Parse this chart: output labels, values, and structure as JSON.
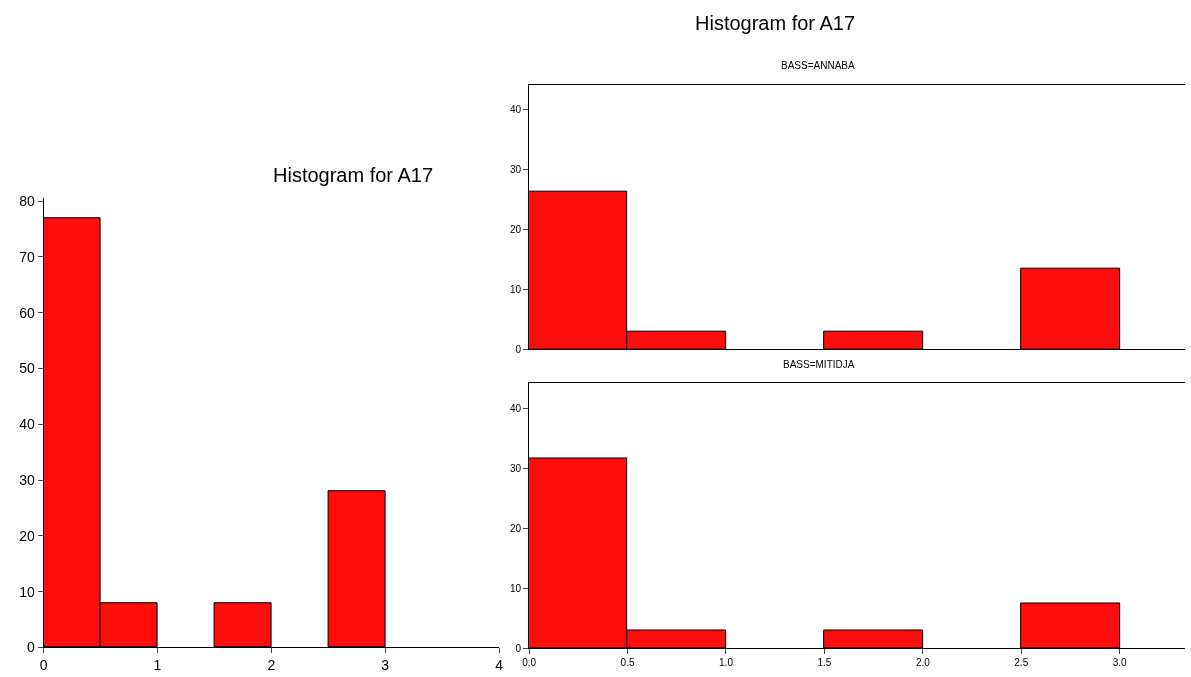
{
  "chart_data": [
    {
      "type": "histogram",
      "title": "Histogram for A17",
      "bins": [
        0,
        0.5,
        1,
        1.5,
        2,
        2.5,
        3,
        3.5,
        4
      ],
      "values": [
        77,
        8,
        0,
        8,
        0,
        28,
        0,
        0
      ],
      "color": "#ff0d0d",
      "xlim": [
        0,
        4
      ],
      "ylim": [
        0,
        80.5
      ],
      "xticks": [
        0,
        1,
        2,
        3,
        4
      ],
      "yticks": [
        0,
        10,
        20,
        30,
        40,
        50,
        60,
        70,
        80
      ]
    },
    {
      "type": "histogram",
      "title": "Histogram for A17",
      "subtitle": "BASS=ANNABA",
      "bins": [
        0,
        0.5,
        1,
        1.5,
        2,
        2.5,
        3
      ],
      "values": [
        26.3,
        3,
        0,
        3,
        0,
        13.5
      ],
      "color": "#ff0d0d",
      "xlim": [
        0,
        3.33
      ],
      "ylim": [
        0,
        44.1
      ],
      "yticks": [
        0,
        10,
        20,
        30,
        40
      ],
      "tick_labels": "y"
    },
    {
      "type": "histogram",
      "subtitle": "BASS=MITIDJA",
      "bins": [
        0,
        0.5,
        1,
        1.5,
        2,
        2.5,
        3
      ],
      "values": [
        31.6,
        3,
        0,
        3,
        0,
        7.5
      ],
      "color": "#ff0d0d",
      "xlim": [
        0,
        3.33
      ],
      "ylim": [
        0,
        44.1
      ],
      "xticks": [
        {
          "value": 0,
          "label": "0.0"
        },
        {
          "value": 0.5,
          "label": "0.5"
        },
        {
          "value": 1,
          "label": "1.0"
        },
        {
          "value": 1.5,
          "label": "1.5"
        },
        {
          "value": 2,
          "label": "2.0"
        },
        {
          "value": 2.5,
          "label": "2.5"
        },
        {
          "value": 3,
          "label": "3.0"
        }
      ],
      "yticks": [
        0,
        10,
        20,
        30,
        40
      ]
    }
  ]
}
